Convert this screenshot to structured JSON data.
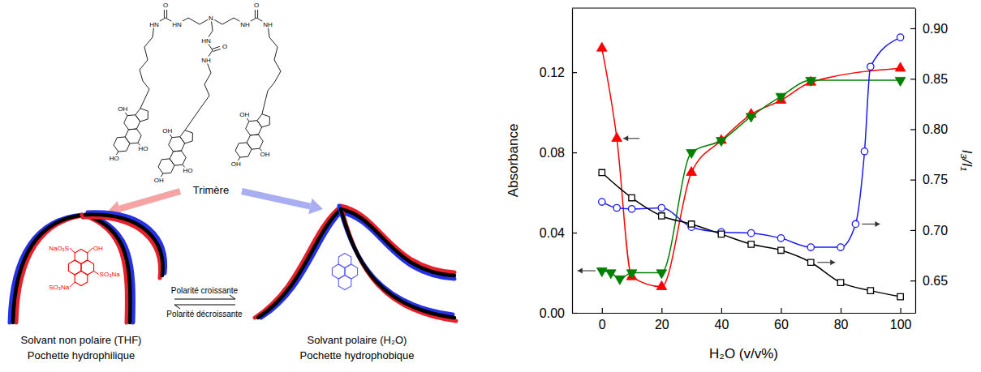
{
  "chart_data": {
    "type": "scatter",
    "x_label": "H₂O  (v/v%)",
    "y_label": "Absorbance",
    "y2_label": "I₃/I₁",
    "xlim": [
      -10,
      105
    ],
    "xticks": [
      0,
      20,
      40,
      60,
      80,
      100
    ],
    "ylim": [
      0,
      0.152
    ],
    "yticks": [
      {
        "value": 0,
        "label": "0.00"
      },
      {
        "value": 0.04,
        "label": "0.04"
      },
      {
        "value": 0.08,
        "label": "0.08"
      },
      {
        "value": 0.12,
        "label": "0.12"
      }
    ],
    "y2lim": [
      0.618,
      0.92
    ],
    "y2ticks": [
      {
        "value": 0.65,
        "label": "0.65"
      },
      {
        "value": 0.7,
        "label": "0.70"
      },
      {
        "value": 0.75,
        "label": "0.75"
      },
      {
        "value": 0.8,
        "label": "0.80"
      },
      {
        "value": 0.85,
        "label": "0.85"
      },
      {
        "value": 0.9,
        "label": "0.90"
      }
    ],
    "grid": false,
    "series": [
      {
        "color": "#ff0000",
        "marker": "triangle-up",
        "line_style": "solid",
        "x": [
          0,
          5,
          10,
          20,
          30,
          40,
          50,
          60,
          70,
          100
        ],
        "values": [
          0.132,
          0.087,
          0.018,
          0.013,
          0.07,
          0.086,
          0.099,
          0.106,
          0.115,
          0.122
        ]
      },
      {
        "color": "#008000",
        "marker": "triangle-down",
        "line_style": "solid",
        "x": [
          0,
          3,
          6,
          10,
          20,
          30,
          40,
          50,
          60,
          70,
          100
        ],
        "values": [
          0.021,
          0.02,
          0.017,
          0.02,
          0.02,
          0.08,
          0.086,
          0.098,
          0.108,
          0.116,
          0.116
        ]
      },
      {
        "color": "#1a1aff",
        "marker": "circle-open",
        "line_style": "solid",
        "axis": "y2",
        "x": [
          0,
          5,
          10,
          20,
          30,
          40,
          50,
          60,
          70,
          80,
          85,
          88,
          90,
          100
        ],
        "values": [
          0.728,
          0.722,
          0.721,
          0.722,
          0.703,
          0.698,
          0.697,
          0.692,
          0.683,
          0.683,
          0.706,
          0.778,
          0.862,
          0.891
        ]
      },
      {
        "color": "#000000",
        "marker": "square-open",
        "line_style": "solid",
        "axis": "y2",
        "x": [
          0,
          10,
          20,
          30,
          40,
          50,
          60,
          70,
          80,
          90,
          100
        ],
        "values": [
          0.757,
          0.732,
          0.714,
          0.706,
          0.696,
          0.686,
          0.68,
          0.668,
          0.648,
          0.64,
          0.634
        ]
      }
    ]
  },
  "diagram": {
    "molecule": {
      "label": "Trimère",
      "core": "N",
      "arms": [
        {
          "urea": [
            "HN",
            "O",
            "HN"
          ],
          "hydroxyls": [
            "HO",
            "HO",
            "OH"
          ]
        },
        {
          "urea": [
            "HN",
            "O",
            "NH"
          ],
          "hydroxyls": [
            "OH",
            "HO",
            "OH"
          ]
        },
        {
          "urea": [
            "NH",
            "O",
            "NH"
          ],
          "hydroxyls": [
            "OH",
            "OH",
            "OH"
          ]
        }
      ]
    },
    "pockets": [
      {
        "solvent": "Solvant non polaire (THF)",
        "pocket": "Pochette hydrophilique",
        "guest_labels": [
          "NaO₃S",
          "OH",
          "SO₃Na",
          "SO₃Na"
        ]
      },
      {
        "solvent": "Solvant polaire (H₂O)",
        "pocket": "Pochette hydrophobique"
      }
    ],
    "equilibrium": {
      "forward": "Polarité croissante",
      "backward": "Polarité décroissante"
    }
  }
}
